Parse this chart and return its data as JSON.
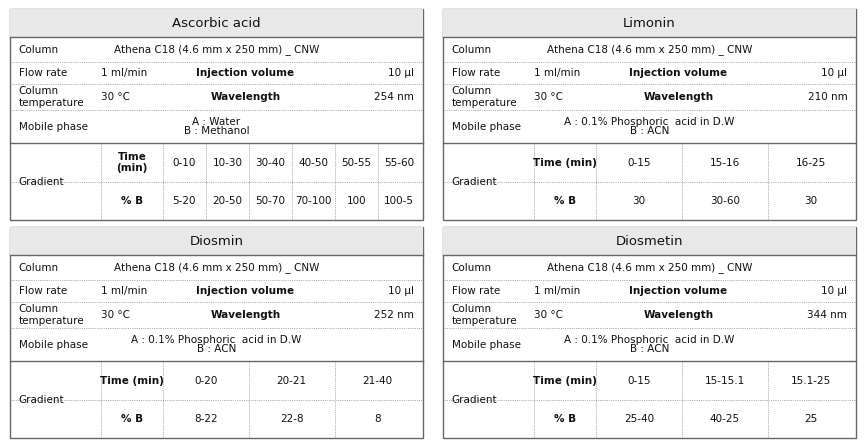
{
  "tables": [
    {
      "title": "Ascorbic acid",
      "column": "Athena C18 (4.6 mm x 250 mm) _ CNW",
      "flow_rate": "1 ml/min",
      "injection_volume": "10 μl",
      "column_temp": "30 °C",
      "wavelength": "254 nm",
      "mobile_phase_line1": "A : Water",
      "mobile_phase_line2": "B : Methanol",
      "gradient_time": [
        "Time\n(min)",
        "0-10",
        "10-30",
        "30-40",
        "40-50",
        "50-55",
        "55-60"
      ],
      "gradient_b": [
        "% B",
        "5-20",
        "20-50",
        "50-70",
        "70-100",
        "100",
        "100-5"
      ]
    },
    {
      "title": "Limonin",
      "column": "Athena C18 (4.6 mm x 250 mm) _ CNW",
      "flow_rate": "1 ml/min",
      "injection_volume": "10 μl",
      "column_temp": "30 °C",
      "wavelength": "210 nm",
      "mobile_phase_line1": "A : 0.1% Phosphoric  acid in D.W",
      "mobile_phase_line2": "B : ACN",
      "gradient_time": [
        "Time (min)",
        "0-15",
        "15-16",
        "16-25"
      ],
      "gradient_b": [
        "% B",
        "30",
        "30-60",
        "30"
      ]
    },
    {
      "title": "Diosmin",
      "column": "Athena C18 (4.6 mm x 250 mm) _ CNW",
      "flow_rate": "1 ml/min",
      "injection_volume": "10 μl",
      "column_temp": "30 °C",
      "wavelength": "252 nm",
      "mobile_phase_line1": "A : 0.1% Phosphoric  acid in D.W",
      "mobile_phase_line2": "B : ACN",
      "gradient_time": [
        "Time (min)",
        "0-20",
        "20-21",
        "21-40"
      ],
      "gradient_b": [
        "% B",
        "8-22",
        "22-8",
        "8"
      ]
    },
    {
      "title": "Diosmetin",
      "column": "Athena C18 (4.6 mm x 250 mm) _ CNW",
      "flow_rate": "1 ml/min",
      "injection_volume": "10 μl",
      "column_temp": "30 °C",
      "wavelength": "344 nm",
      "mobile_phase_line1": "A : 0.1% Phosphoric  acid in D.W",
      "mobile_phase_line2": "B : ACN",
      "gradient_time": [
        "Time (min)",
        "0-15",
        "15-15.1",
        "15.1-25"
      ],
      "gradient_b": [
        "% B",
        "25-40",
        "40-25",
        "25"
      ]
    }
  ],
  "bg_color": "#ffffff",
  "title_bg": "#e8e8e8",
  "border_color": "#666666",
  "text_color": "#111111",
  "title_fontsize": 9.5,
  "body_fontsize": 7.5
}
